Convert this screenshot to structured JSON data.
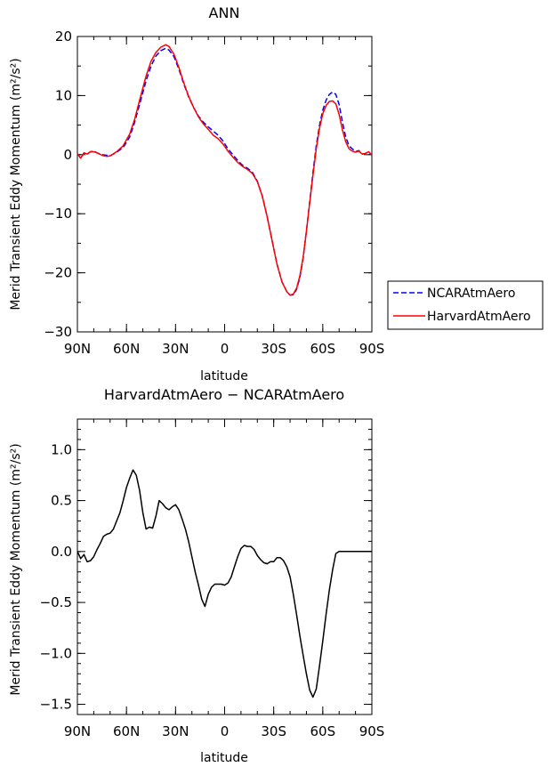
{
  "chart_data": [
    {
      "type": "line",
      "title": "ANN",
      "xlabel": "latitude",
      "ylabel": "Merid Transient Eddy Momentum (m²/s²)",
      "xlim": [
        90,
        -90
      ],
      "ylim": [
        -30,
        20
      ],
      "x_ticks": [
        {
          "v": 90,
          "label": "90N"
        },
        {
          "v": 60,
          "label": "60N"
        },
        {
          "v": 30,
          "label": "30N"
        },
        {
          "v": 0,
          "label": "0"
        },
        {
          "v": -30,
          "label": "30S"
        },
        {
          "v": -60,
          "label": "60S"
        },
        {
          "v": -90,
          "label": "90S"
        }
      ],
      "y_ticks": [
        {
          "v": 20,
          "label": "20"
        },
        {
          "v": 10,
          "label": "10"
        },
        {
          "v": 0,
          "label": "0"
        },
        {
          "v": -10,
          "label": "−10"
        },
        {
          "v": -20,
          "label": "−20"
        },
        {
          "v": -30,
          "label": "−30"
        }
      ],
      "x_minor_step": 10,
      "y_minor_step": 5,
      "legend_position": "right",
      "series": [
        {
          "name": "NCARAtmAero",
          "color": "#0000ff",
          "dash": "dashed",
          "points": [
            [
              90,
              0.2
            ],
            [
              88,
              -0.6
            ],
            [
              86,
              0.3
            ],
            [
              84,
              0.1
            ],
            [
              82,
              0.5
            ],
            [
              80,
              0.6
            ],
            [
              78,
              0.3
            ],
            [
              75,
              0.0
            ],
            [
              72,
              -0.1
            ],
            [
              70,
              -0.2
            ],
            [
              66,
              0.4
            ],
            [
              62,
              1.2
            ],
            [
              58,
              3.0
            ],
            [
              55,
              5.5
            ],
            [
              52,
              8.5
            ],
            [
              48,
              12.5
            ],
            [
              45,
              15.0
            ],
            [
              42,
              16.7
            ],
            [
              39,
              17.6
            ],
            [
              36,
              18.0
            ],
            [
              34,
              17.7
            ],
            [
              31,
              16.6
            ],
            [
              28,
              14.5
            ],
            [
              25,
              12.0
            ],
            [
              22,
              9.8
            ],
            [
              19,
              8.0
            ],
            [
              16,
              6.5
            ],
            [
              13,
              5.5
            ],
            [
              10,
              4.7
            ],
            [
              7,
              4.0
            ],
            [
              4,
              3.3
            ],
            [
              1,
              2.3
            ],
            [
              -2,
              1.0
            ],
            [
              -5,
              0.0
            ],
            [
              -8,
              -1.0
            ],
            [
              -11,
              -1.8
            ],
            [
              -14,
              -2.3
            ],
            [
              -17,
              -3.0
            ],
            [
              -20,
              -4.5
            ],
            [
              -23,
              -7.0
            ],
            [
              -26,
              -10.5
            ],
            [
              -29,
              -14.5
            ],
            [
              -32,
              -18.5
            ],
            [
              -35,
              -21.5
            ],
            [
              -38,
              -23.2
            ],
            [
              -40,
              -23.8
            ],
            [
              -42,
              -23.7
            ],
            [
              -44,
              -22.8
            ],
            [
              -46,
              -20.8
            ],
            [
              -48,
              -17.5
            ],
            [
              -50,
              -13.0
            ],
            [
              -52,
              -8.0
            ],
            [
              -54,
              -3.0
            ],
            [
              -56,
              1.5
            ],
            [
              -58,
              5.0
            ],
            [
              -60,
              7.5
            ],
            [
              -62,
              9.2
            ],
            [
              -64,
              10.2
            ],
            [
              -66,
              10.6
            ],
            [
              -68,
              10.2
            ],
            [
              -70,
              8.5
            ],
            [
              -72,
              5.5
            ],
            [
              -74,
              3.0
            ],
            [
              -76,
              1.5
            ],
            [
              -78,
              1.0
            ],
            [
              -80,
              0.5
            ],
            [
              -82,
              0.7
            ],
            [
              -84,
              0.1
            ],
            [
              -86,
              0.2
            ],
            [
              -88,
              0.5
            ],
            [
              -90,
              -0.1
            ]
          ]
        },
        {
          "name": "HarvardAtmAero",
          "color": "#ff0000",
          "dash": "solid",
          "points": [
            [
              90,
              0.2
            ],
            [
              88,
              -0.6
            ],
            [
              86,
              0.3
            ],
            [
              84,
              0.1
            ],
            [
              82,
              0.5
            ],
            [
              80,
              0.5
            ],
            [
              78,
              0.3
            ],
            [
              75,
              -0.1
            ],
            [
              72,
              -0.3
            ],
            [
              70,
              -0.2
            ],
            [
              66,
              0.5
            ],
            [
              62,
              1.5
            ],
            [
              58,
              3.5
            ],
            [
              55,
              6.0
            ],
            [
              52,
              9.2
            ],
            [
              48,
              13.3
            ],
            [
              45,
              15.8
            ],
            [
              42,
              17.3
            ],
            [
              39,
              18.2
            ],
            [
              36,
              18.6
            ],
            [
              34,
              18.3
            ],
            [
              31,
              17.0
            ],
            [
              28,
              14.8
            ],
            [
              25,
              12.2
            ],
            [
              22,
              9.9
            ],
            [
              19,
              8.0
            ],
            [
              16,
              6.4
            ],
            [
              13,
              5.2
            ],
            [
              10,
              4.3
            ],
            [
              7,
              3.3
            ],
            [
              4,
              2.7
            ],
            [
              1,
              1.8
            ],
            [
              -2,
              0.6
            ],
            [
              -5,
              -0.4
            ],
            [
              -8,
              -1.3
            ],
            [
              -11,
              -2.0
            ],
            [
              -14,
              -2.5
            ],
            [
              -17,
              -3.2
            ],
            [
              -20,
              -4.6
            ],
            [
              -23,
              -7.0
            ],
            [
              -26,
              -10.5
            ],
            [
              -29,
              -14.5
            ],
            [
              -32,
              -18.5
            ],
            [
              -35,
              -21.5
            ],
            [
              -38,
              -23.2
            ],
            [
              -40,
              -23.8
            ],
            [
              -42,
              -23.6
            ],
            [
              -44,
              -22.6
            ],
            [
              -46,
              -20.5
            ],
            [
              -48,
              -17.3
            ],
            [
              -50,
              -13.0
            ],
            [
              -52,
              -8.2
            ],
            [
              -54,
              -3.5
            ],
            [
              -56,
              1.0
            ],
            [
              -58,
              4.5
            ],
            [
              -60,
              6.9
            ],
            [
              -62,
              8.3
            ],
            [
              -64,
              9.0
            ],
            [
              -66,
              9.1
            ],
            [
              -68,
              8.6
            ],
            [
              -70,
              6.8
            ],
            [
              -72,
              4.2
            ],
            [
              -74,
              2.2
            ],
            [
              -76,
              1.0
            ],
            [
              -78,
              0.6
            ],
            [
              -80,
              0.4
            ],
            [
              -82,
              0.6
            ],
            [
              -84,
              0.1
            ],
            [
              -86,
              0.2
            ],
            [
              -88,
              0.5
            ],
            [
              -90,
              -0.1
            ]
          ]
        }
      ]
    },
    {
      "type": "line",
      "title": "HarvardAtmAero − NCARAtmAero",
      "xlabel": "latitude",
      "ylabel": "Merid Transient Eddy Momentum (m²/s²)",
      "xlim": [
        90,
        -90
      ],
      "ylim": [
        -1.6,
        1.3
      ],
      "x_ticks": [
        {
          "v": 90,
          "label": "90N"
        },
        {
          "v": 60,
          "label": "60N"
        },
        {
          "v": 30,
          "label": "30N"
        },
        {
          "v": 0,
          "label": "0"
        },
        {
          "v": -30,
          "label": "30S"
        },
        {
          "v": -60,
          "label": "60S"
        },
        {
          "v": -90,
          "label": "90S"
        }
      ],
      "y_ticks": [
        {
          "v": 1.0,
          "label": "1.0"
        },
        {
          "v": 0.5,
          "label": "0.5"
        },
        {
          "v": 0.0,
          "label": "0.0"
        },
        {
          "v": -0.5,
          "label": "−0.5"
        },
        {
          "v": -1.0,
          "label": "−1.0"
        },
        {
          "v": -1.5,
          "label": "−1.5"
        }
      ],
      "x_minor_step": 10,
      "y_minor_step": 0.1,
      "series": [
        {
          "color": "#000000",
          "dash": "solid",
          "points": [
            [
              90,
              -0.0
            ],
            [
              88,
              -0.07
            ],
            [
              86,
              -0.03
            ],
            [
              84,
              -0.1
            ],
            [
              82,
              -0.09
            ],
            [
              80,
              -0.05
            ],
            [
              78,
              0.02
            ],
            [
              76,
              0.08
            ],
            [
              74,
              0.15
            ],
            [
              72,
              0.17
            ],
            [
              70,
              0.18
            ],
            [
              68,
              0.22
            ],
            [
              66,
              0.3
            ],
            [
              64,
              0.38
            ],
            [
              62,
              0.5
            ],
            [
              60,
              0.63
            ],
            [
              58,
              0.72
            ],
            [
              56,
              0.8
            ],
            [
              54,
              0.75
            ],
            [
              52,
              0.6
            ],
            [
              50,
              0.38
            ],
            [
              48,
              0.22
            ],
            [
              46,
              0.24
            ],
            [
              44,
              0.23
            ],
            [
              42,
              0.35
            ],
            [
              40,
              0.5
            ],
            [
              38,
              0.47
            ],
            [
              36,
              0.43
            ],
            [
              34,
              0.41
            ],
            [
              32,
              0.44
            ],
            [
              30,
              0.46
            ],
            [
              28,
              0.41
            ],
            [
              26,
              0.32
            ],
            [
              24,
              0.22
            ],
            [
              22,
              0.1
            ],
            [
              20,
              -0.05
            ],
            [
              18,
              -0.2
            ],
            [
              16,
              -0.33
            ],
            [
              14,
              -0.47
            ],
            [
              12,
              -0.54
            ],
            [
              10,
              -0.42
            ],
            [
              8,
              -0.35
            ],
            [
              6,
              -0.32
            ],
            [
              4,
              -0.32
            ],
            [
              2,
              -0.32
            ],
            [
              0,
              -0.33
            ],
            [
              -2,
              -0.31
            ],
            [
              -4,
              -0.25
            ],
            [
              -6,
              -0.15
            ],
            [
              -8,
              -0.05
            ],
            [
              -10,
              0.03
            ],
            [
              -12,
              0.06
            ],
            [
              -14,
              0.05
            ],
            [
              -16,
              0.05
            ],
            [
              -18,
              0.02
            ],
            [
              -20,
              -0.04
            ],
            [
              -22,
              -0.08
            ],
            [
              -24,
              -0.11
            ],
            [
              -26,
              -0.12
            ],
            [
              -28,
              -0.1
            ],
            [
              -30,
              -0.1
            ],
            [
              -32,
              -0.06
            ],
            [
              -34,
              -0.06
            ],
            [
              -36,
              -0.09
            ],
            [
              -38,
              -0.15
            ],
            [
              -40,
              -0.25
            ],
            [
              -42,
              -0.42
            ],
            [
              -44,
              -0.62
            ],
            [
              -46,
              -0.83
            ],
            [
              -48,
              -1.02
            ],
            [
              -50,
              -1.2
            ],
            [
              -52,
              -1.36
            ],
            [
              -54,
              -1.43
            ],
            [
              -56,
              -1.35
            ],
            [
              -58,
              -1.12
            ],
            [
              -60,
              -0.88
            ],
            [
              -62,
              -0.62
            ],
            [
              -64,
              -0.38
            ],
            [
              -66,
              -0.18
            ],
            [
              -68,
              -0.02
            ],
            [
              -70,
              0.0
            ],
            [
              -72,
              0.0
            ],
            [
              -74,
              0.0
            ],
            [
              -76,
              0.0
            ],
            [
              -78,
              0.0
            ],
            [
              -80,
              -0.0
            ],
            [
              -82,
              0.0
            ],
            [
              -84,
              0.0
            ],
            [
              -86,
              0.0
            ],
            [
              -88,
              0.0
            ],
            [
              -90,
              0.0
            ]
          ]
        }
      ]
    }
  ]
}
